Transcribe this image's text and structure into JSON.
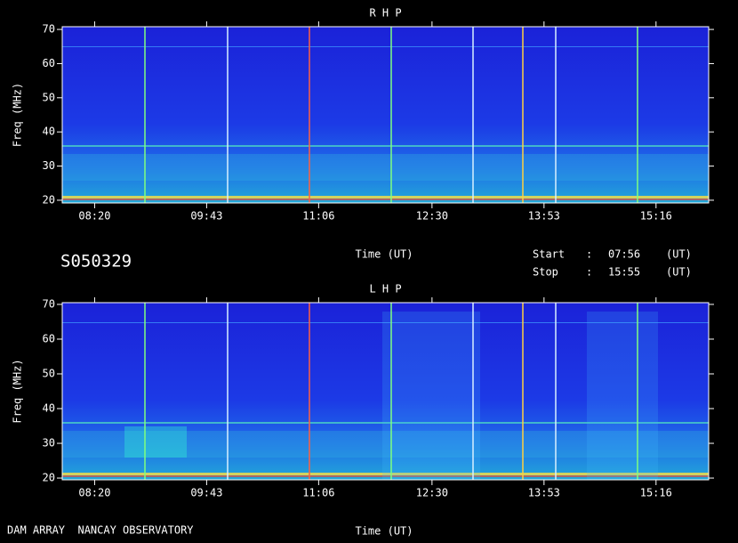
{
  "chart_data": [
    {
      "type": "spectrogram",
      "title": "R H P",
      "ylabel": "Freq (MHz)",
      "xlabel": "Time (UT)",
      "xlim": [
        476,
        955
      ],
      "xticks": [
        {
          "value": 500,
          "label": "08:20"
        },
        {
          "value": 583,
          "label": "09:43"
        },
        {
          "value": 666,
          "label": "11:06"
        },
        {
          "value": 750,
          "label": "12:30"
        },
        {
          "value": 833,
          "label": "13:53"
        },
        {
          "value": 916,
          "label": "15:16"
        }
      ],
      "ylim": [
        19.2,
        70.8
      ],
      "yticks": [
        20,
        30,
        40,
        50,
        60,
        70
      ]
    },
    {
      "type": "spectrogram",
      "title": "L H P",
      "ylabel": "Freq (MHz)",
      "xlabel": "Time (UT)",
      "xlim": [
        476,
        955
      ],
      "xticks": [
        {
          "value": 500,
          "label": "08:20"
        },
        {
          "value": 583,
          "label": "09:43"
        },
        {
          "value": 666,
          "label": "11:06"
        },
        {
          "value": 750,
          "label": "12:30"
        },
        {
          "value": 833,
          "label": "13:53"
        },
        {
          "value": 916,
          "label": "15:16"
        }
      ],
      "ylim": [
        19.5,
        70.5
      ],
      "yticks": [
        20,
        30,
        40,
        50,
        60,
        70
      ]
    }
  ],
  "header": {
    "id": "S050329",
    "start": {
      "label": "Start",
      "sep": ":",
      "time": "07:56",
      "unit": "(UT)"
    },
    "stop": {
      "label": "Stop",
      "sep": ":",
      "time": "15:55",
      "unit": "(UT)"
    }
  },
  "footer": "DAM ARRAY  NANCAY OBSERVATORY"
}
